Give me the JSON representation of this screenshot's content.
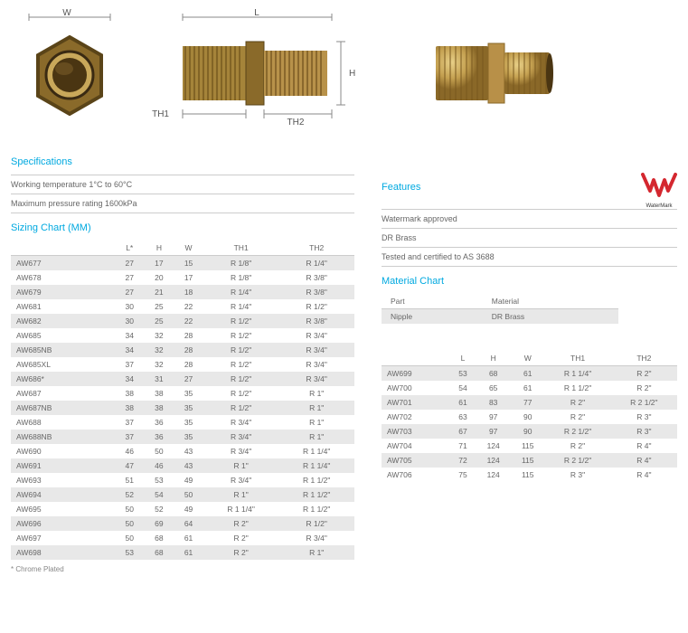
{
  "diagram": {
    "w_label": "W",
    "l_label": "L",
    "h_label": "H",
    "th1_label": "TH1",
    "th2_label": "TH2"
  },
  "specs": {
    "title": "Specifications",
    "rows": [
      "Working temperature 1°C to 60°C",
      "Maximum pressure rating 1600kPa"
    ]
  },
  "sizing_title": "Sizing Chart (MM)",
  "sizing_cols": [
    "",
    "L*",
    "H",
    "W",
    "TH1",
    "TH2"
  ],
  "sizing_rows": [
    [
      "AW677",
      "27",
      "17",
      "15",
      "R 1/8\"",
      "R 1/4\""
    ],
    [
      "AW678",
      "27",
      "20",
      "17",
      "R 1/8\"",
      "R 3/8\""
    ],
    [
      "AW679",
      "27",
      "21",
      "18",
      "R 1/4\"",
      "R 3/8\""
    ],
    [
      "AW681",
      "30",
      "25",
      "22",
      "R 1/4\"",
      "R 1/2\""
    ],
    [
      "AW682",
      "30",
      "25",
      "22",
      "R 1/2\"",
      "R 3/8\""
    ],
    [
      "AW685",
      "34",
      "32",
      "28",
      "R 1/2\"",
      "R 3/4\""
    ],
    [
      "AW685NB",
      "34",
      "32",
      "28",
      "R 1/2\"",
      "R 3/4\""
    ],
    [
      "AW685XL",
      "37",
      "32",
      "28",
      "R 1/2\"",
      "R 3/4\""
    ],
    [
      "AW686*",
      "34",
      "31",
      "27",
      "R 1/2\"",
      "R 3/4\""
    ],
    [
      "AW687",
      "38",
      "38",
      "35",
      "R 1/2\"",
      "R 1\""
    ],
    [
      "AW687NB",
      "38",
      "38",
      "35",
      "R 1/2\"",
      "R 1\""
    ],
    [
      "AW688",
      "37",
      "36",
      "35",
      "R 3/4\"",
      "R 1\""
    ],
    [
      "AW688NB",
      "37",
      "36",
      "35",
      "R 3/4\"",
      "R 1\""
    ],
    [
      "AW690",
      "46",
      "50",
      "43",
      "R 3/4\"",
      "R 1 1/4\""
    ],
    [
      "AW691",
      "47",
      "46",
      "43",
      "R 1\"",
      "R 1 1/4\""
    ],
    [
      "AW693",
      "51",
      "53",
      "49",
      "R 3/4\"",
      "R 1 1/2\""
    ],
    [
      "AW694",
      "52",
      "54",
      "50",
      "R 1\"",
      "R 1 1/2\""
    ],
    [
      "AW695",
      "50",
      "52",
      "49",
      "R 1 1/4\"",
      "R 1 1/2\""
    ],
    [
      "AW696",
      "50",
      "69",
      "64",
      "R 2\"",
      "R 1/2\""
    ],
    [
      "AW697",
      "50",
      "68",
      "61",
      "R 2\"",
      "R 3/4\""
    ],
    [
      "AW698",
      "53",
      "68",
      "61",
      "R 2\"",
      "R 1\""
    ]
  ],
  "footnote": "* Chrome Plated",
  "features": {
    "title": "Features",
    "rows": [
      "Watermark approved",
      "DR Brass",
      "Tested and certified to AS 3688"
    ]
  },
  "watermark_label": "WaterMark",
  "material": {
    "title": "Material Chart",
    "cols": [
      "Part",
      "Material"
    ],
    "rows": [
      [
        "Nipple",
        "DR Brass"
      ]
    ]
  },
  "sizing2_cols": [
    "",
    "L",
    "H",
    "W",
    "TH1",
    "TH2"
  ],
  "sizing2_rows": [
    [
      "AW699",
      "53",
      "68",
      "61",
      "R 1 1/4\"",
      "R 2\""
    ],
    [
      "AW700",
      "54",
      "65",
      "61",
      "R 1 1/2\"",
      "R 2\""
    ],
    [
      "AW701",
      "61",
      "83",
      "77",
      "R 2\"",
      "R 2 1/2\""
    ],
    [
      "AW702",
      "63",
      "97",
      "90",
      "R 2\"",
      "R 3\""
    ],
    [
      "AW703",
      "67",
      "97",
      "90",
      "R 2 1/2\"",
      "R 3\""
    ],
    [
      "AW704",
      "71",
      "124",
      "115",
      "R 2\"",
      "R 4\""
    ],
    [
      "AW705",
      "72",
      "124",
      "115",
      "R 2 1/2\"",
      "R 4\""
    ],
    [
      "AW706",
      "75",
      "124",
      "115",
      "R 3\"",
      "R 4\""
    ]
  ]
}
